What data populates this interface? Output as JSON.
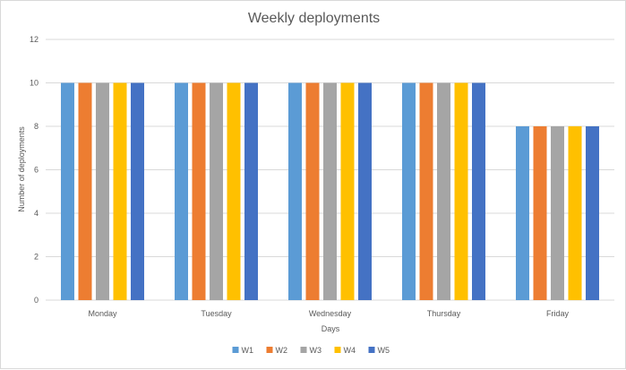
{
  "chart_data": {
    "type": "bar",
    "title": "Weekly deployments",
    "xlabel": "Days",
    "ylabel": "Number of deployments",
    "categories": [
      "Monday",
      "Tuesday",
      "Wednesday",
      "Thursday",
      "Friday"
    ],
    "series": [
      {
        "name": "W1",
        "color": "#5b9bd5",
        "values": [
          10,
          10,
          10,
          10,
          8
        ]
      },
      {
        "name": "W2",
        "color": "#ed7d31",
        "values": [
          10,
          10,
          10,
          10,
          8
        ]
      },
      {
        "name": "W3",
        "color": "#a5a5a5",
        "values": [
          10,
          10,
          10,
          10,
          8
        ]
      },
      {
        "name": "W4",
        "color": "#ffc000",
        "values": [
          10,
          10,
          10,
          10,
          8
        ]
      },
      {
        "name": "W5",
        "color": "#4472c4",
        "values": [
          10,
          10,
          10,
          10,
          8
        ]
      }
    ],
    "ylim": [
      0,
      12
    ],
    "yticks": [
      "0",
      "2",
      "4",
      "6",
      "8",
      "10",
      "12"
    ],
    "grid": true,
    "legend_position": "bottom",
    "gridline_color": "#d9d9d9"
  }
}
